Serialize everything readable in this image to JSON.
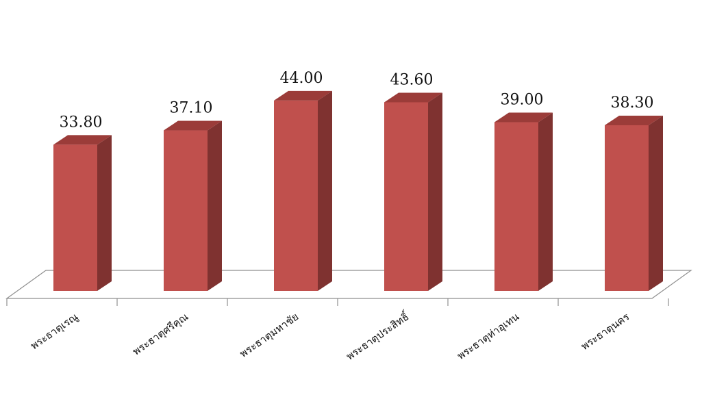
{
  "chart_data": {
    "type": "bar",
    "categories": [
      "พระธาตุเรณู",
      "พระธาตุศรีคุณ",
      "พระธาตุมหาชัย",
      "พระธาตุประสิทธิ์",
      "พระธาตุท่าอุเทน",
      "พระธาตุนคร"
    ],
    "values": [
      33.8,
      37.1,
      44.0,
      43.6,
      39.0,
      38.3
    ],
    "value_labels": [
      "33.80",
      "37.10",
      "44.00",
      "43.60",
      "39.00",
      "38.30"
    ],
    "title": "",
    "xlabel": "",
    "ylabel": "",
    "grid": false,
    "legend": "none",
    "style": "3d-column",
    "colors": {
      "front": "#c0504d",
      "side": "#7f3230",
      "top": "#9b3c39"
    }
  }
}
